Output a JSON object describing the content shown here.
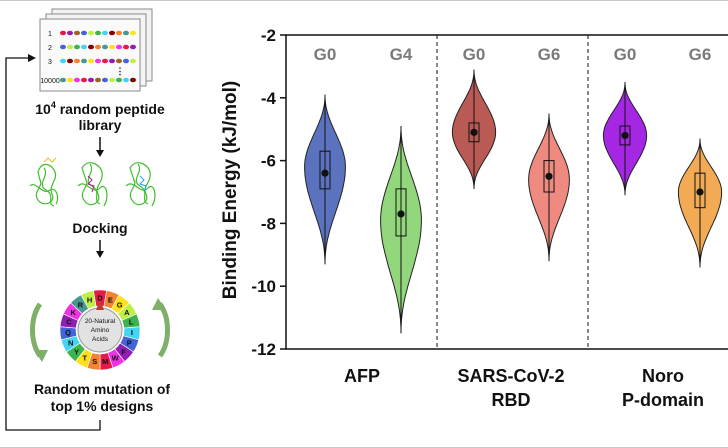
{
  "workflow": {
    "library_rows": [
      "1",
      "2",
      "3",
      "10000"
    ],
    "library_ellipsis": "⋮",
    "library_label_line1_base": "10",
    "library_label_line1_sup": "4",
    "library_label_line1_rest": " random peptide",
    "library_label_line2": "library",
    "docking_label": "Docking",
    "wheel_center_label": [
      "20-Natural",
      "Amino",
      "Acids"
    ],
    "wheel_letters": [
      "D",
      "E",
      "G",
      "A",
      "L",
      "I",
      "P",
      "F",
      "W",
      "M",
      "S",
      "T",
      "Y",
      "N",
      "Q",
      "C",
      "K",
      "R",
      "H"
    ],
    "mutation_label_line1": "Random mutation of",
    "mutation_label_line2": "top 1% designs",
    "colors": {
      "arrow": "#111111",
      "protein": "#3fbf2a",
      "wheel_arrows": "#7fb069"
    }
  },
  "chart_data": {
    "type": "violin",
    "ylabel": "Binding Energy (kJ/mol)",
    "ylim": [
      -12,
      -2
    ],
    "yticks": [
      -2,
      -4,
      -6,
      -8,
      -10,
      -12
    ],
    "groups": [
      {
        "label_lines": [
          "AFP"
        ],
        "violins": [
          "afp-g0",
          "afp-g4"
        ]
      },
      {
        "label_lines": [
          "SARS-CoV-2",
          "RBD"
        ],
        "violins": [
          "sars-g0",
          "sars-g6"
        ]
      },
      {
        "label_lines": [
          "Noro",
          "P-domain"
        ],
        "violins": [
          "noro-g0",
          "noro-g6"
        ]
      }
    ],
    "violins": [
      {
        "id": "afp-g0",
        "label": "G0",
        "color": "#5b73bf",
        "min": -9.3,
        "q1": -6.9,
        "median": -6.4,
        "q3": -5.7,
        "max": -3.9,
        "peak": -6.2,
        "width": 0.85
      },
      {
        "id": "afp-g4",
        "label": "G4",
        "color": "#92d77b",
        "min": -11.5,
        "q1": -8.4,
        "median": -7.7,
        "q3": -6.9,
        "max": -4.9,
        "peak": -7.9,
        "width": 0.85
      },
      {
        "id": "sars-g0",
        "label": "G0",
        "color": "#b95a55",
        "min": -6.9,
        "q1": -5.4,
        "median": -5.1,
        "q3": -4.8,
        "max": -3.1,
        "peak": -5.1,
        "width": 0.9
      },
      {
        "id": "sars-g6",
        "label": "G6",
        "color": "#ef8a80",
        "min": -9.2,
        "q1": -7.0,
        "median": -6.5,
        "q3": -6.0,
        "max": -4.5,
        "peak": -6.6,
        "width": 0.85
      },
      {
        "id": "noro-g0",
        "label": "G0",
        "color": "#a526e3",
        "min": -7.1,
        "q1": -5.5,
        "median": -5.2,
        "q3": -4.9,
        "max": -3.5,
        "peak": -5.2,
        "width": 0.9
      },
      {
        "id": "noro-g6",
        "label": "G6",
        "color": "#f3aa55",
        "min": -9.4,
        "q1": -7.5,
        "median": -7.0,
        "q3": -6.4,
        "max": -5.3,
        "peak": -7.0,
        "width": 0.9
      }
    ],
    "separators": "dashed vertical lines between groups",
    "grid": false
  }
}
